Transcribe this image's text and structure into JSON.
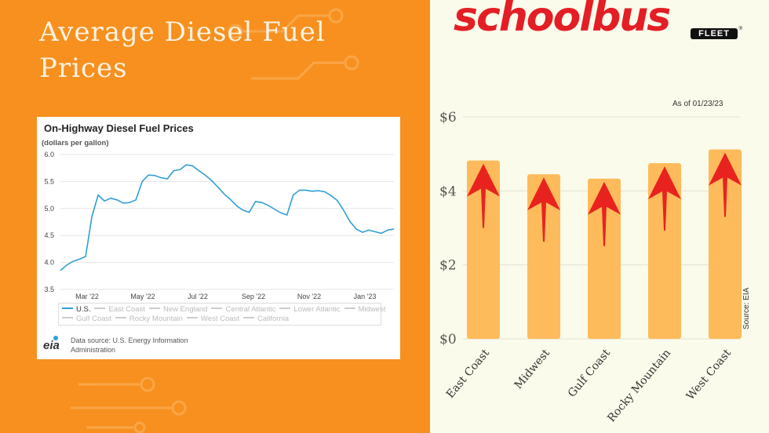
{
  "page_title": "Average Diesel Fuel Prices",
  "colors": {
    "left_bg": "#f7901e",
    "right_bg": "#fbfbec",
    "bar": "#febb5b",
    "arrow": "#e8231f",
    "line": "#2f9fd6",
    "brand": "#e31e24"
  },
  "brand": {
    "name": "schoolbus",
    "sub": "FLEET",
    "reg": "®"
  },
  "line_card": {
    "title": "On-Highway Diesel Fuel Prices",
    "subtitle": "(dollars per gallon)",
    "legend": [
      "U.S.",
      "East Coast",
      "New England",
      "Central Atlantic",
      "Lower Atlantic",
      "Midwest",
      "Gulf Coast",
      "Rocky Mountain",
      "West Coast",
      "California"
    ],
    "legend_active": "U.S.",
    "source_logo": "eia",
    "source_note": "Data source: U.S. Energy Information Administration"
  },
  "bar_panel": {
    "as_of": "As of 01/23/23",
    "source": "Source: EIA"
  },
  "chart_data": [
    {
      "type": "line",
      "title": "On-Highway Diesel Fuel Prices",
      "ylabel": "(dollars per gallon)",
      "ylim": [
        3.5,
        6.0
      ],
      "yticks": [
        "6.0",
        "5.5",
        "5.0",
        "4.5",
        "4.0",
        "3.5"
      ],
      "xticks": [
        "Mar '22",
        "May '22",
        "Jul '22",
        "Sep '22",
        "Nov '22",
        "Jan '23"
      ],
      "grid": true,
      "legend_position": "bottom",
      "series": [
        {
          "name": "U.S.",
          "values": [
            3.85,
            3.95,
            4.02,
            4.06,
            4.11,
            4.85,
            5.25,
            5.14,
            5.19,
            5.16,
            5.1,
            5.11,
            5.16,
            5.5,
            5.62,
            5.61,
            5.57,
            5.55,
            5.7,
            5.72,
            5.81,
            5.79,
            5.7,
            5.62,
            5.52,
            5.4,
            5.27,
            5.17,
            5.05,
            4.97,
            4.93,
            5.13,
            5.11,
            5.06,
            4.99,
            4.92,
            4.88,
            5.25,
            5.34,
            5.34,
            5.32,
            5.33,
            5.31,
            5.24,
            5.15,
            4.97,
            4.76,
            4.62,
            4.56,
            4.6,
            4.57,
            4.54,
            4.6,
            4.62
          ]
        }
      ]
    },
    {
      "type": "bar",
      "categories": [
        "East Coast",
        "Midwest",
        "Gulf Coast",
        "Rocky Mountain",
        "West Coast"
      ],
      "values": [
        4.82,
        4.45,
        4.33,
        4.75,
        5.12
      ],
      "ylim": [
        0,
        6
      ],
      "yticks": [
        "$0",
        "$2",
        "$4",
        "$6"
      ],
      "grid": true,
      "annotation": "As of 01/23/23",
      "source": "Source: EIA"
    }
  ]
}
